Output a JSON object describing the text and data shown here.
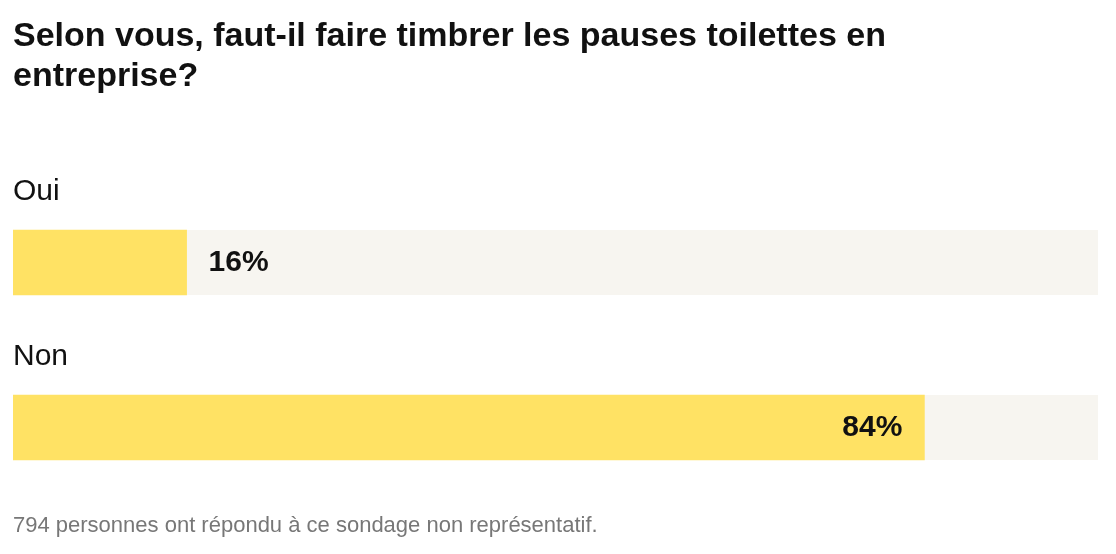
{
  "chart_data": {
    "type": "bar",
    "orientation": "horizontal",
    "title": "Selon vous, faut-il faire timbrer les pauses toilettes en entreprise?",
    "categories": [
      "Oui",
      "Non"
    ],
    "values": [
      16,
      84
    ],
    "value_labels": [
      "16%",
      "84%"
    ],
    "color": "#ffe264",
    "xlim": [
      0,
      100
    ],
    "annotations": [
      "794 personnes ont répondu à ce sondage non représentatif."
    ]
  }
}
